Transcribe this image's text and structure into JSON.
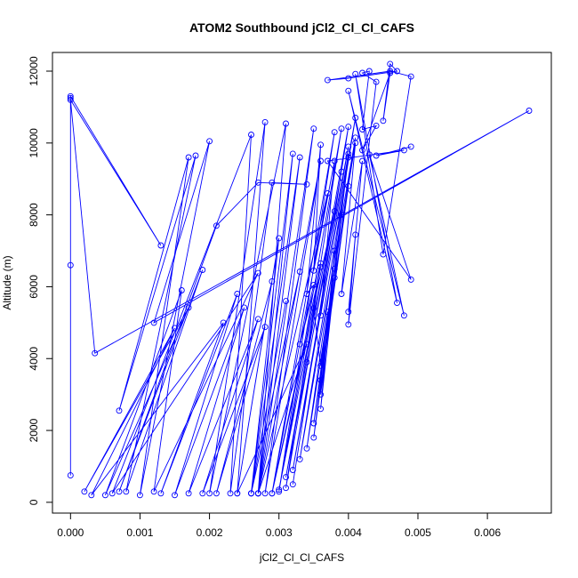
{
  "chart_data": {
    "type": "line",
    "title": "ATOM2 Southbound jCl2_Cl_Cl_CAFS",
    "xlabel": "jCl2_Cl_Cl_CAFS",
    "ylabel": "Altitude (m)",
    "xlim": [
      -0.00026,
      0.00692
    ],
    "ylim": [
      -300,
      12520
    ],
    "x_ticks": [
      0,
      0.001,
      0.002,
      0.003,
      0.004,
      0.005,
      0.006
    ],
    "x_tick_labels": [
      "0.000",
      "0.001",
      "0.002",
      "0.003",
      "0.004",
      "0.005",
      "0.006"
    ],
    "y_ticks": [
      0,
      2000,
      4000,
      6000,
      8000,
      10000,
      12000
    ],
    "y_tick_labels": [
      "0",
      "2000",
      "4000",
      "6000",
      "8000",
      "10000",
      "12000"
    ],
    "grid": false,
    "legend": "none",
    "series": [
      {
        "color": "#0000ff",
        "points": [
          [
            0.0,
            750
          ],
          [
            0.0,
            6600
          ],
          [
            0.0,
            11250
          ],
          [
            0.0,
            11300
          ],
          [
            0.0013,
            7150
          ],
          [
            0.0,
            11200
          ],
          [
            0.00035,
            4150
          ],
          [
            0.0066,
            10900
          ],
          [
            0.0012,
            5000
          ],
          [
            0.002,
            10050
          ],
          [
            0.001,
            200
          ],
          [
            0.0017,
            9600
          ],
          [
            0.0007,
            2550
          ],
          [
            0.0018,
            9650
          ],
          [
            0.0008,
            300
          ],
          [
            0.0019,
            6470
          ],
          [
            0.0007,
            300
          ],
          [
            0.0021,
            7700
          ],
          [
            0.0027,
            8900
          ],
          [
            0.0034,
            8850
          ],
          [
            0.0029,
            8900
          ],
          [
            0.0023,
            250
          ],
          [
            0.0026,
            10230
          ],
          [
            0.0006,
            250
          ],
          [
            0.0027,
            6380
          ],
          [
            0.0012,
            300
          ],
          [
            0.0016,
            5900
          ],
          [
            0.0005,
            200
          ],
          [
            0.0017,
            5420
          ],
          [
            0.0002,
            300
          ],
          [
            0.0015,
            4850
          ],
          [
            0.0003,
            200
          ],
          [
            0.0022,
            5000
          ],
          [
            0.0013,
            250
          ],
          [
            0.0024,
            5800
          ],
          [
            0.0015,
            200
          ],
          [
            0.0025,
            5420
          ],
          [
            0.0017,
            250
          ],
          [
            0.0027,
            5100
          ],
          [
            0.0019,
            250
          ],
          [
            0.0028,
            4880
          ],
          [
            0.0021,
            250
          ],
          [
            0.0029,
            6150
          ],
          [
            0.0024,
            250
          ],
          [
            0.003,
            7350
          ],
          [
            0.0026,
            250
          ],
          [
            0.0031,
            5600
          ],
          [
            0.0026,
            250
          ],
          [
            0.0033,
            6420
          ],
          [
            0.0027,
            250
          ],
          [
            0.0034,
            4400
          ],
          [
            0.0024,
            250
          ],
          [
            0.0028,
            10580
          ],
          [
            0.002,
            250
          ],
          [
            0.0031,
            10540
          ],
          [
            0.0027,
            250
          ],
          [
            0.0032,
            9700
          ],
          [
            0.0026,
            250
          ],
          [
            0.0033,
            9600
          ],
          [
            0.0027,
            250
          ],
          [
            0.0035,
            10400
          ],
          [
            0.0028,
            250
          ],
          [
            0.0036,
            9500
          ],
          [
            0.0027,
            250
          ],
          [
            0.0037,
            8600
          ],
          [
            0.0029,
            250
          ],
          [
            0.0036,
            6550
          ],
          [
            0.003,
            350
          ],
          [
            0.0038,
            8100
          ],
          [
            0.0029,
            250
          ],
          [
            0.0038,
            10300
          ],
          [
            0.003,
            300
          ],
          [
            0.0039,
            10400
          ],
          [
            0.0031,
            400
          ],
          [
            0.0039,
            9200
          ],
          [
            0.0032,
            500
          ],
          [
            0.004,
            10450
          ],
          [
            0.0031,
            700
          ],
          [
            0.004,
            9900
          ],
          [
            0.0032,
            900
          ],
          [
            0.0041,
            10700
          ],
          [
            0.0033,
            1200
          ],
          [
            0.0041,
            10150
          ],
          [
            0.0034,
            1500
          ],
          [
            0.004,
            9600
          ],
          [
            0.0035,
            1800
          ],
          [
            0.004,
            8800
          ],
          [
            0.0035,
            2200
          ],
          [
            0.0039,
            8000
          ],
          [
            0.0036,
            2600
          ],
          [
            0.0038,
            7000
          ],
          [
            0.0036,
            3000
          ],
          [
            0.0038,
            6250
          ],
          [
            0.0036,
            3400
          ],
          [
            0.0037,
            5300
          ],
          [
            0.0036,
            3800
          ],
          [
            0.0035,
            5400
          ],
          [
            0.0034,
            3900
          ],
          [
            0.0036,
            6650
          ],
          [
            0.0033,
            4400
          ],
          [
            0.0035,
            6050
          ],
          [
            0.0034,
            5800
          ],
          [
            0.0036,
            9950
          ],
          [
            0.0035,
            6450
          ],
          [
            0.0038,
            9500
          ],
          [
            0.0036,
            5200
          ],
          [
            0.004,
            9700
          ],
          [
            0.0038,
            6500
          ],
          [
            0.0041,
            10000
          ],
          [
            0.0039,
            5800
          ],
          [
            0.0042,
            9500
          ],
          [
            0.004,
            5300
          ],
          [
            0.0041,
            7450
          ],
          [
            0.004,
            4950
          ],
          [
            0.0044,
            11700
          ],
          [
            0.0042,
            11950
          ],
          [
            0.0043,
            12000
          ],
          [
            0.0042,
            10380
          ],
          [
            0.0044,
            10480
          ],
          [
            0.0042,
            9800
          ],
          [
            0.0046,
            11950
          ],
          [
            0.0045,
            10620
          ],
          [
            0.0046,
            12200
          ],
          [
            0.0047,
            12000
          ],
          [
            0.004,
            11800
          ],
          [
            0.0037,
            11750
          ],
          [
            0.0046,
            12000
          ],
          [
            0.0049,
            11850
          ],
          [
            0.0045,
            6900
          ],
          [
            0.0041,
            11920
          ],
          [
            0.0047,
            5550
          ],
          [
            0.004,
            11450
          ],
          [
            0.0048,
            5200
          ],
          [
            0.0043,
            9680
          ],
          [
            0.0049,
            6200
          ],
          [
            0.0037,
            9500
          ],
          [
            0.0048,
            9800
          ],
          [
            0.0044,
            9650
          ],
          [
            0.0049,
            9900
          ]
        ]
      }
    ]
  }
}
